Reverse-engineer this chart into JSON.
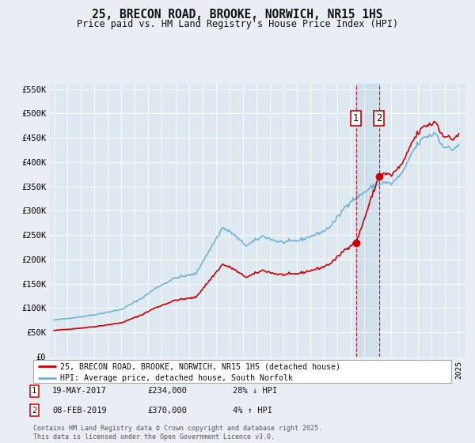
{
  "title": "25, BRECON ROAD, BROOKE, NORWICH, NR15 1HS",
  "subtitle": "Price paid vs. HM Land Registry's House Price Index (HPI)",
  "legend_line1": "25, BRECON ROAD, BROOKE, NORWICH, NR15 1HS (detached house)",
  "legend_line2": "HPI: Average price, detached house, South Norfolk",
  "note1_label": "1",
  "note1_date": "19-MAY-2017",
  "note1_price": "£234,000",
  "note1_hpi": "28% ↓ HPI",
  "note2_label": "2",
  "note2_date": "08-FEB-2019",
  "note2_price": "£370,000",
  "note2_hpi": "4% ↑ HPI",
  "footer": "Contains HM Land Registry data © Crown copyright and database right 2025.\nThis data is licensed under the Open Government Licence v3.0.",
  "sale1_date_year": 2017.38,
  "sale1_price": 234000,
  "sale2_date_year": 2019.1,
  "sale2_price": 370000,
  "hpi_color": "#6baed6",
  "price_color": "#cc0000",
  "bg_color": "#e8eef4",
  "plot_bg": "#dde8f0",
  "grid_color": "#ffffff",
  "ylim": [
    0,
    560000
  ],
  "yticks": [
    0,
    50000,
    100000,
    150000,
    200000,
    250000,
    300000,
    350000,
    400000,
    450000,
    500000,
    550000
  ],
  "ytick_labels": [
    "£0",
    "£50K",
    "£100K",
    "£150K",
    "£200K",
    "£250K",
    "£300K",
    "£350K",
    "£400K",
    "£450K",
    "£500K",
    "£550K"
  ]
}
